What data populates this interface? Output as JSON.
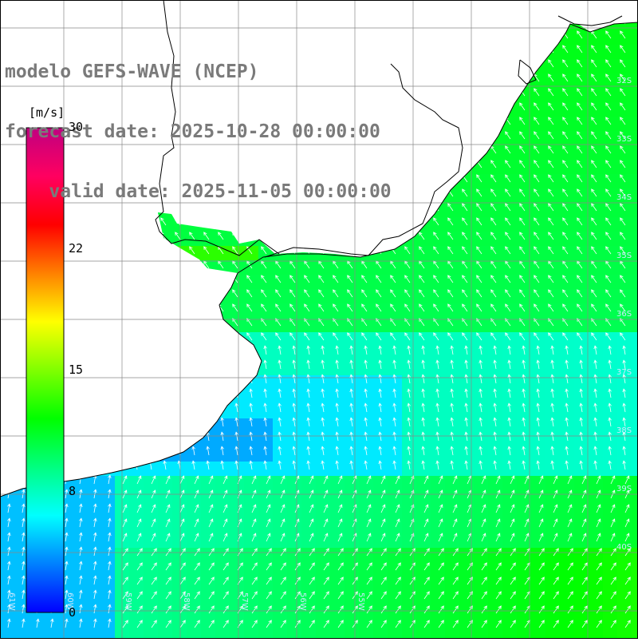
{
  "titles": {
    "model": "modelo GEFS-WAVE (NCEP)",
    "forecast": "forecast date: 2025-10-28 00:00:00",
    "valid": "    valid date: 2025-11-05 00:00:00"
  },
  "colorbar": {
    "unit": "[m/s]",
    "ticks": [
      "30",
      "22",
      "15",
      "8",
      "0"
    ],
    "tick_values": [
      30,
      22,
      15,
      8,
      0
    ],
    "range": [
      0,
      30
    ],
    "colors": [
      "#0000ff",
      "#0080ff",
      "#00ffff",
      "#00ff80",
      "#00ff00",
      "#80ff00",
      "#ffff00",
      "#ff8000",
      "#ff0000",
      "#ff0060",
      "#c00080"
    ]
  },
  "map": {
    "lat_labels": [
      "32S",
      "33S",
      "34S",
      "35S",
      "36S",
      "37S",
      "38S",
      "39S",
      "40S"
    ],
    "lon_labels": [
      "61W",
      "60W",
      "59W",
      "58W",
      "57W",
      "56W",
      "55W"
    ],
    "land_color": "#ffffff",
    "grid_color": "#888888",
    "arrow_color": "#ffffff"
  }
}
